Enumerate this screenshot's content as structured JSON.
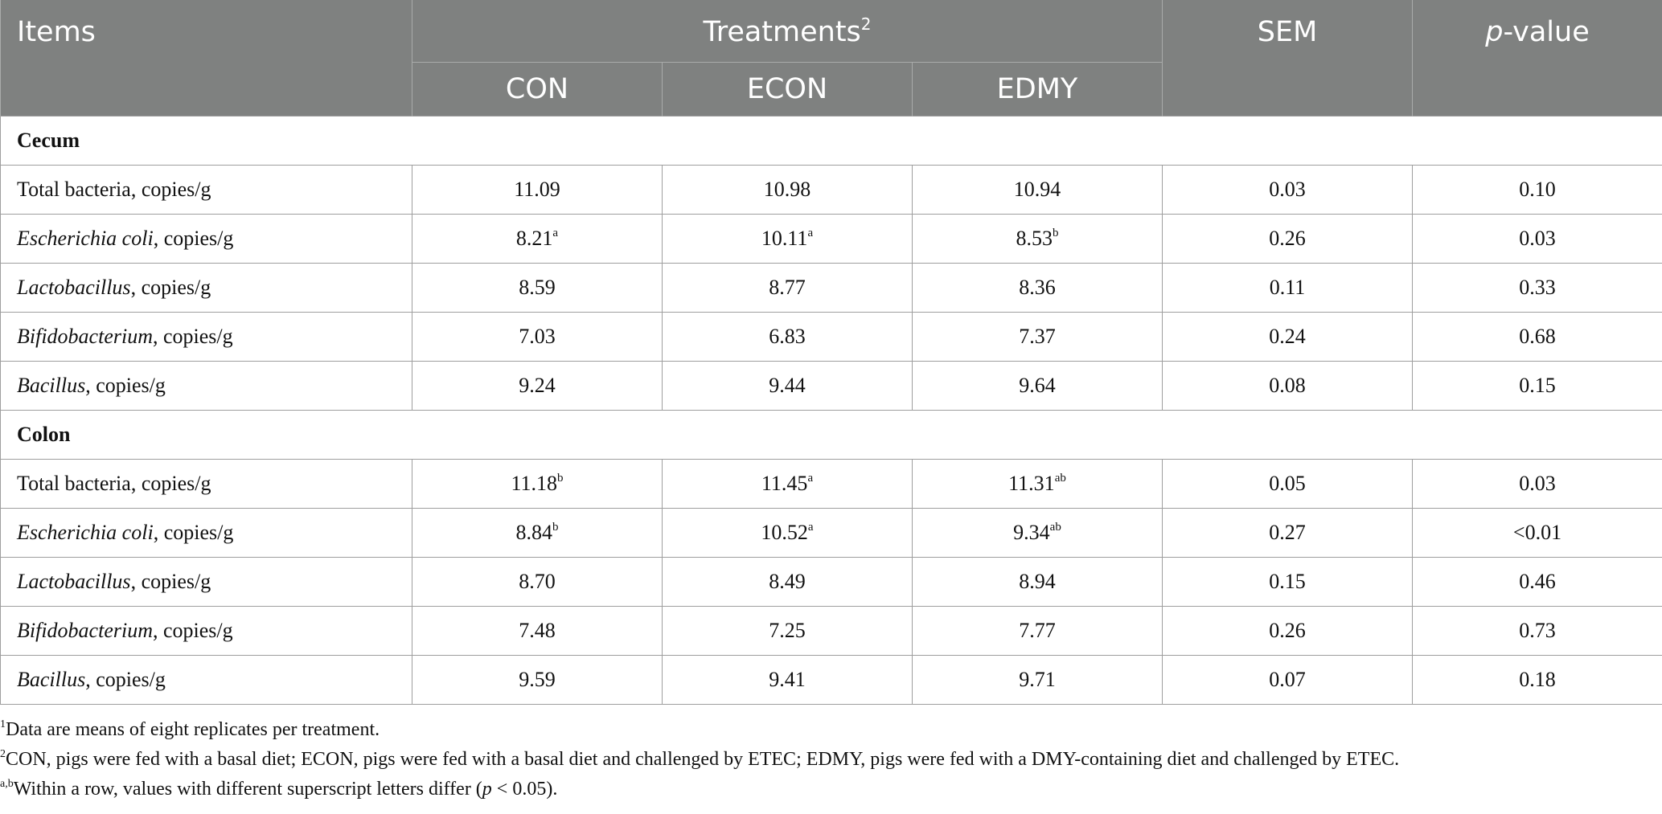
{
  "header": {
    "items": "Items",
    "treatments": "Treatments",
    "treatments_sup": "2",
    "sem": "SEM",
    "p_italic": "p",
    "p_rest": "-value",
    "columns": [
      "CON",
      "ECON",
      "EDMY"
    ]
  },
  "sections": [
    {
      "name": "Cecum",
      "rows": [
        {
          "italic": "",
          "label": "Total bacteria, copies/g",
          "con": "11.09",
          "con_sup": "",
          "econ": "10.98",
          "econ_sup": "",
          "edmy": "10.94",
          "edmy_sup": "",
          "sem": "0.03",
          "p": "0.10"
        },
        {
          "italic": "Escherichia coli",
          "label": ", copies/g",
          "con": "8.21",
          "con_sup": "a",
          "econ": "10.11",
          "econ_sup": "a",
          "edmy": "8.53",
          "edmy_sup": "b",
          "sem": "0.26",
          "p": "0.03"
        },
        {
          "italic": "Lactobacillus",
          "label": ", copies/g",
          "con": "8.59",
          "con_sup": "",
          "econ": "8.77",
          "econ_sup": "",
          "edmy": "8.36",
          "edmy_sup": "",
          "sem": "0.11",
          "p": "0.33"
        },
        {
          "italic": "Bifidobacterium",
          "label": ", copies/g",
          "con": "7.03",
          "con_sup": "",
          "econ": "6.83",
          "econ_sup": "",
          "edmy": "7.37",
          "edmy_sup": "",
          "sem": "0.24",
          "p": "0.68"
        },
        {
          "italic": "Bacillus",
          "label": ", copies/g",
          "con": "9.24",
          "con_sup": "",
          "econ": "9.44",
          "econ_sup": "",
          "edmy": "9.64",
          "edmy_sup": "",
          "sem": "0.08",
          "p": "0.15"
        }
      ]
    },
    {
      "name": "Colon",
      "rows": [
        {
          "italic": "",
          "label": "Total bacteria, copies/g",
          "con": "11.18",
          "con_sup": "b",
          "econ": "11.45",
          "econ_sup": "a",
          "edmy": "11.31",
          "edmy_sup": "ab",
          "sem": "0.05",
          "p": "0.03"
        },
        {
          "italic": "Escherichia coli",
          "label": ", copies/g",
          "con": "8.84",
          "con_sup": "b",
          "econ": "10.52",
          "econ_sup": "a",
          "edmy": "9.34",
          "edmy_sup": "ab",
          "sem": "0.27",
          "p": "<0.01"
        },
        {
          "italic": "Lactobacillus",
          "label": ", copies/g",
          "con": "8.70",
          "con_sup": "",
          "econ": "8.49",
          "econ_sup": "",
          "edmy": "8.94",
          "edmy_sup": "",
          "sem": "0.15",
          "p": "0.46"
        },
        {
          "italic": "Bifidobacterium",
          "label": ", copies/g",
          "con": "7.48",
          "con_sup": "",
          "econ": "7.25",
          "econ_sup": "",
          "edmy": "7.77",
          "edmy_sup": "",
          "sem": "0.26",
          "p": "0.73"
        },
        {
          "italic": "Bacillus",
          "label": ", copies/g",
          "con": "9.59",
          "con_sup": "",
          "econ": "9.41",
          "econ_sup": "",
          "edmy": "9.71",
          "edmy_sup": "",
          "sem": "0.07",
          "p": "0.18"
        }
      ]
    }
  ],
  "footnotes": {
    "n1_sup": "1",
    "n1": "Data are means of eight replicates per treatment.",
    "n2_sup": "2",
    "n2": "CON, pigs were fed with a basal diet; ECON, pigs were fed with a basal diet and challenged by ETEC; EDMY, pigs were fed with a DMY-containing diet and challenged by ETEC.",
    "n3_sup": "a,b",
    "n3_pre": "Within a row, values with different superscript letters differ (",
    "n3_italic": "p",
    "n3_post": " < 0.05)."
  }
}
